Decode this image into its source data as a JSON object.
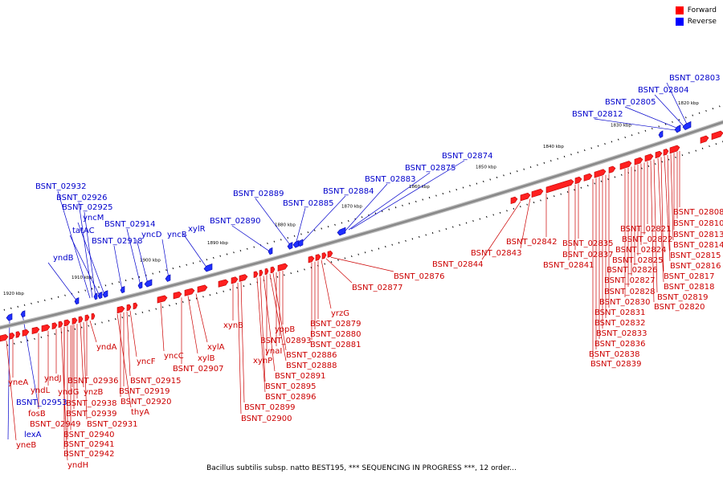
{
  "legend": {
    "forward_label": "Forward",
    "reverse_label": "Reverse",
    "forward_color": "#ff0000",
    "reverse_color": "#0000ff"
  },
  "caption": "Bacillus subtilis subsp. natto BEST195, *** SEQUENCING IN PROGRESS ***, 12 order...",
  "colors": {
    "forward_text": "#cc0000",
    "reverse_text": "#0000cc",
    "backbone": "#888888"
  },
  "positions": [
    "1920 kbp",
    "1910 kbp",
    "1900 kbp",
    "1890 kbp",
    "1880 kbp",
    "1870 kbp",
    "1860 kbp",
    "1850 kbp",
    "1840 kbp",
    "1830 kbp",
    "1820 kbp"
  ],
  "reverse_genes": [
    "BSNT_02803",
    "BSNT_02804",
    "BSNT_02805",
    "BSNT_02812",
    "BSNT_02874",
    "BSNT_02875",
    "BSNT_02883",
    "BSNT_02884",
    "BSNT_02885",
    "BSNT_02889",
    "BSNT_02890",
    "xylR",
    "yncB",
    "yncD",
    "BSNT_02914",
    "BSNT_02918",
    "yncM",
    "tatAC",
    "BSNT_02925",
    "BSNT_02926",
    "BSNT_02932",
    "yndB",
    "BSNT_02953",
    "lexA"
  ],
  "forward_genes": [
    "BSNT_02808",
    "BSNT_02810",
    "BSNT_02813",
    "BSNT_02814",
    "BSNT_02815",
    "BSNT_02816",
    "BSNT_02817",
    "BSNT_02818",
    "BSNT_02819",
    "BSNT_02820",
    "BSNT_02821",
    "BSNT_02822",
    "BSNT_02824",
    "BSNT_02825",
    "BSNT_02826",
    "BSNT_02827",
    "BSNT_02828",
    "BSNT_02830",
    "BSNT_02831",
    "BSNT_02832",
    "BSNT_02833",
    "BSNT_02836",
    "BSNT_02838",
    "BSNT_02839",
    "BSNT_02835",
    "BSNT_02837",
    "BSNT_02841",
    "BSNT_02842",
    "BSNT_02843",
    "BSNT_02844",
    "BSNT_02876",
    "BSNT_02877",
    "yrzG",
    "BSNT_02879",
    "BSNT_02880",
    "BSNT_02881",
    "yopB",
    "BSNT_02893",
    "ynaI",
    "BSNT_02886",
    "BSNT_02888",
    "xynP",
    "BSNT_02891",
    "BSNT_02895",
    "BSNT_02896",
    "xynB",
    "BSNT_02899",
    "BSNT_02900",
    "xylA",
    "xylB",
    "BSNT_02907",
    "yncC",
    "yncF",
    "BSNT_02915",
    "BSNT_02919",
    "BSNT_02920",
    "thyA",
    "yndA",
    "BSNT_02936",
    "yndJ",
    "yndL",
    "yndG",
    "yneA",
    "fosB",
    "ynzB",
    "BSNT_02938",
    "BSNT_02939",
    "BSNT_02949",
    "BSNT_02931",
    "BSNT_02940",
    "BSNT_02941",
    "BSNT_02942",
    "yndH",
    "yneB"
  ]
}
